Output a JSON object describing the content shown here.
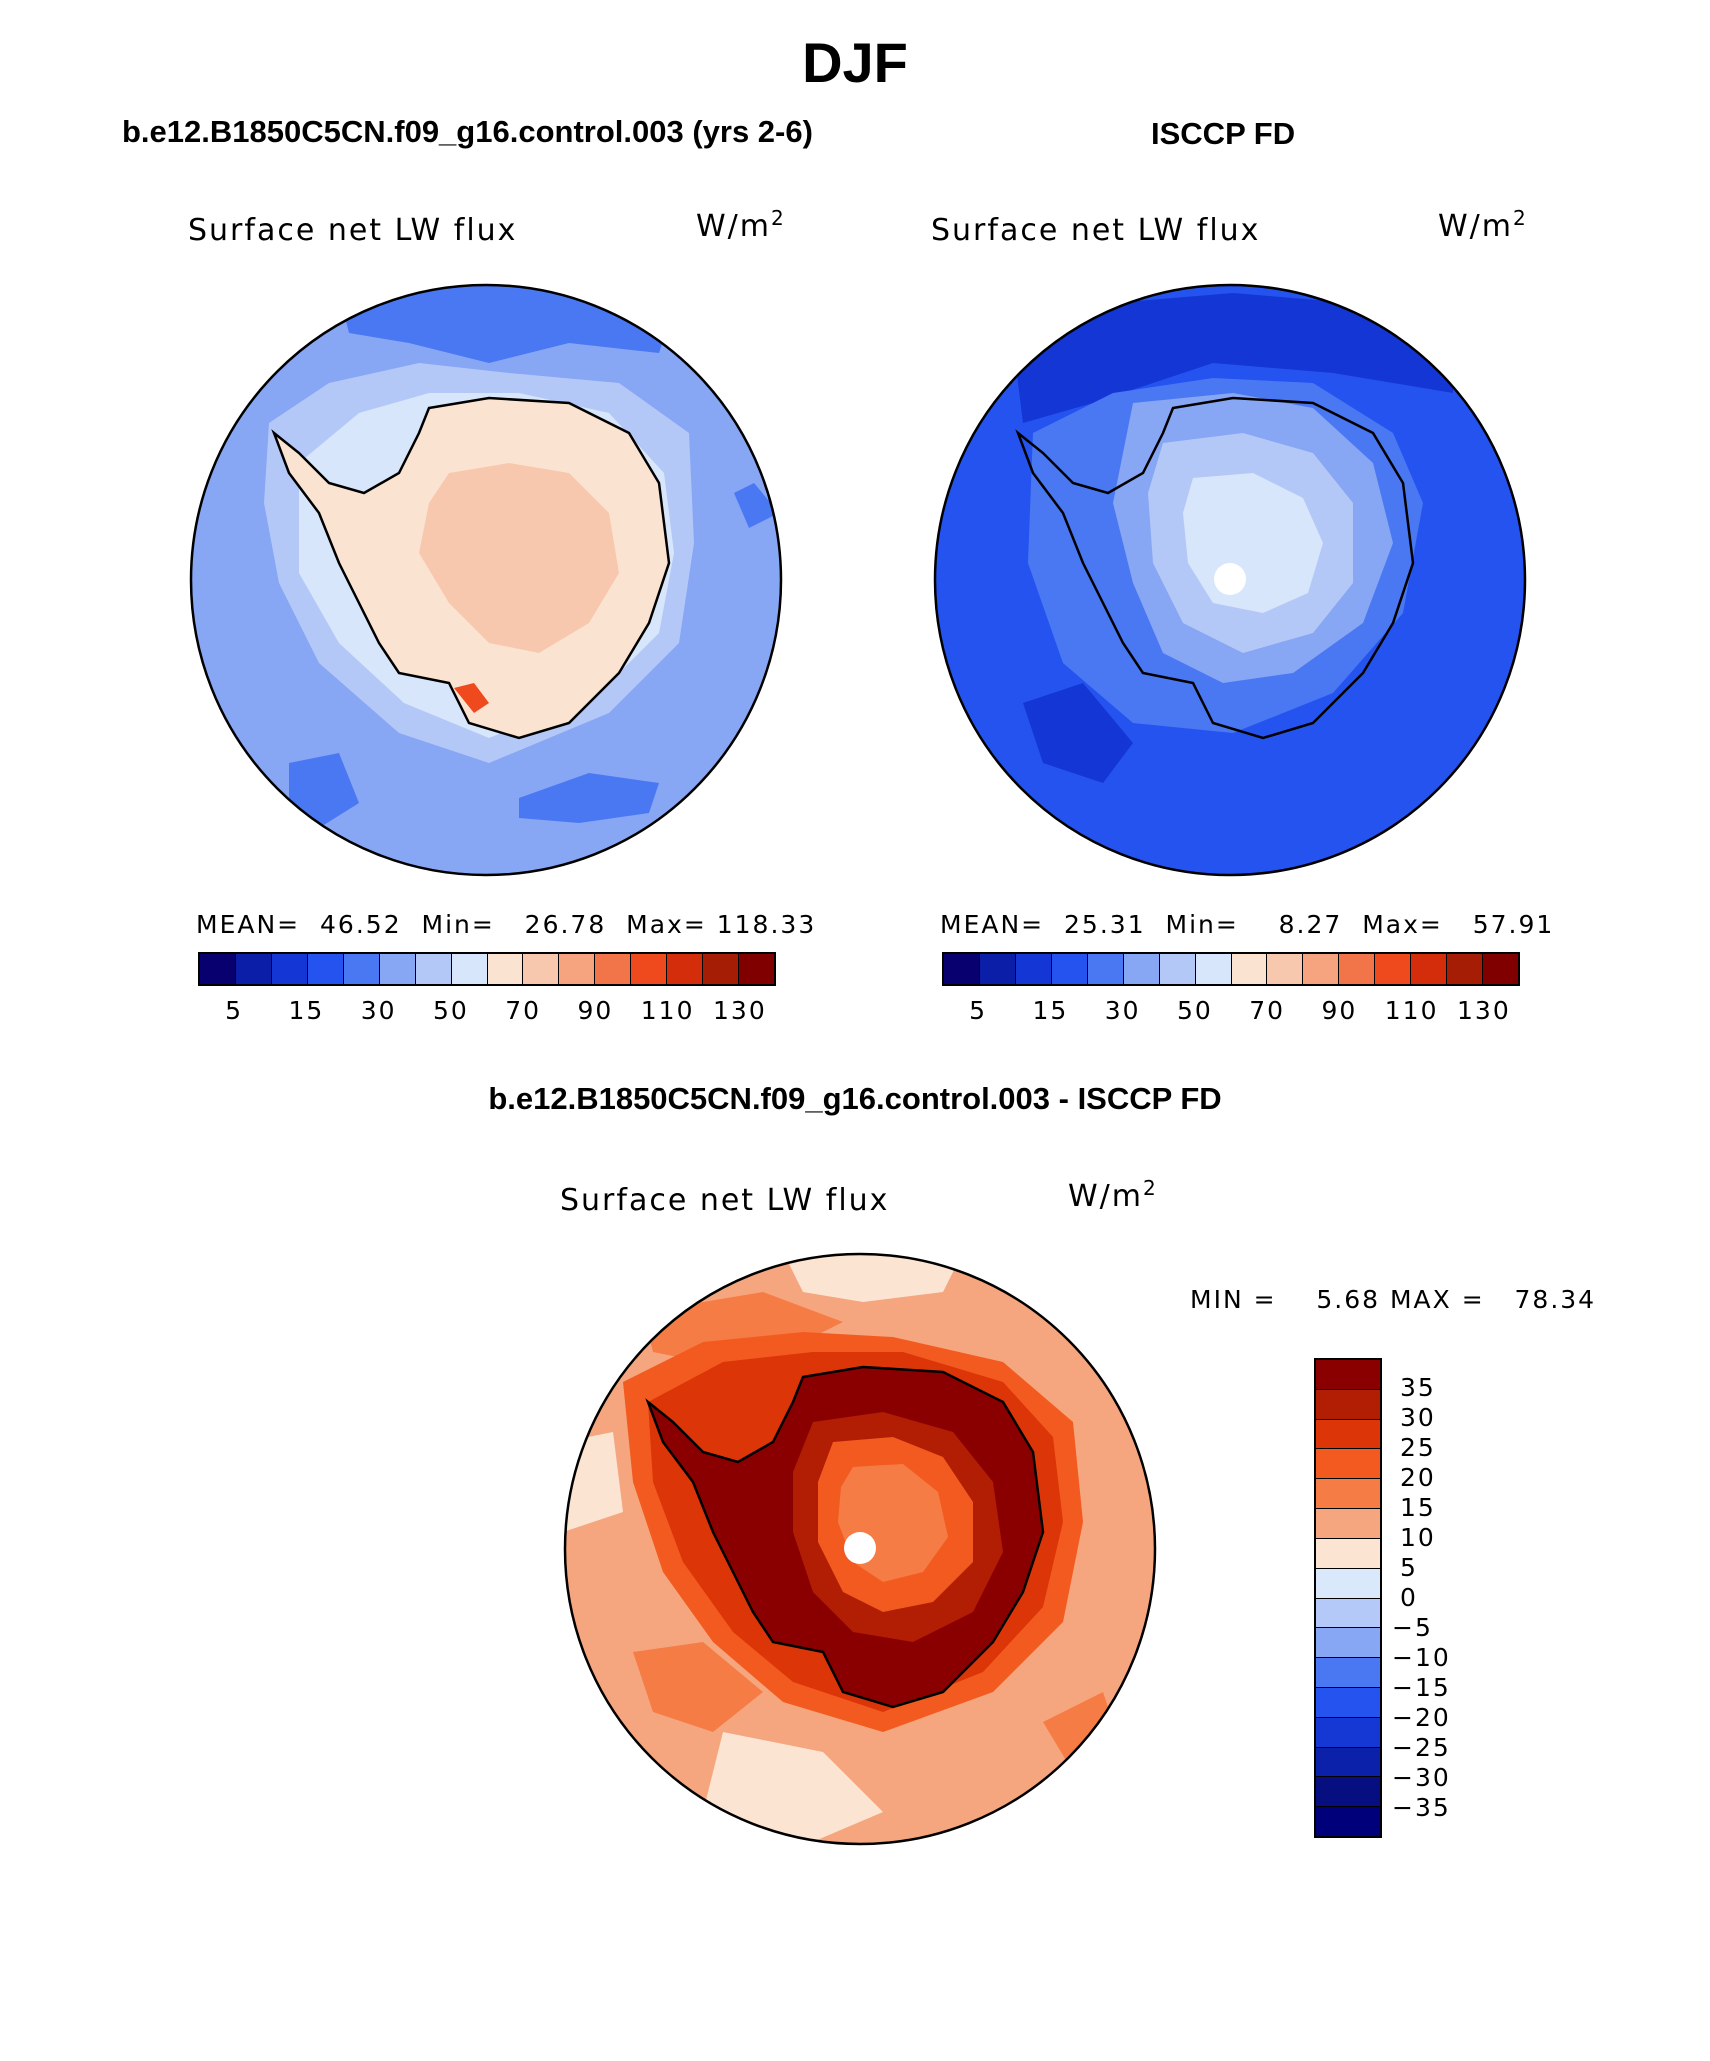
{
  "figure": {
    "title": "DJF",
    "variable": "Surface net LW flux",
    "units_base": "W/m",
    "units_exp": "2"
  },
  "panels": {
    "model": {
      "title": "b.e12.B1850C5CN.f09_g16.control.003 (yrs 2-6)",
      "stats": {
        "mean_label": "MEAN=",
        "mean": "46.52",
        "min_label": "Min=",
        "min": "26.78",
        "max_label": "Max=",
        "max": "118.33"
      }
    },
    "obs": {
      "title": "ISCCP FD",
      "stats": {
        "mean_label": "MEAN=",
        "mean": "25.31",
        "min_label": "Min=",
        "min": "8.27",
        "max_label": "Max=",
        "max": "57.91"
      }
    },
    "diff": {
      "title": "b.e12.B1850C5CN.f09_g16.control.003 - ISCCP FD",
      "stats": {
        "min_label": "MIN =",
        "min": "5.68",
        "max_label": "MAX =",
        "max": "78.34"
      }
    }
  },
  "colorbars": {
    "abs": {
      "colors": [
        "#08006e",
        "#0b1ea8",
        "#1436d4",
        "#2553f0",
        "#4a78f2",
        "#87a6f4",
        "#b4c8f8",
        "#d7e6fa",
        "#fbe3d2",
        "#f8c8ae",
        "#f6a47f",
        "#f2754a",
        "#ee4a1e",
        "#d32d0c",
        "#a61d06",
        "#800000"
      ],
      "tick_labels": [
        "5",
        "15",
        "30",
        "50",
        "70",
        "90",
        "110",
        "130"
      ]
    },
    "diff": {
      "colors": [
        "#8a0000",
        "#b21e04",
        "#dc3508",
        "#f35a20",
        "#f57d45",
        "#f6a67e",
        "#fbe4d2",
        "#d9e9fb",
        "#b4c9f7",
        "#87a6f3",
        "#4a78f2",
        "#2553f0",
        "#1538d5",
        "#0b21aa",
        "#070e80",
        "#00007a"
      ],
      "tick_labels": [
        "35",
        "30",
        "25",
        "20",
        "15",
        "10",
        "5",
        "0",
        "−5",
        "−10",
        "−15",
        "−20",
        "−25",
        "−30",
        "−35"
      ]
    }
  },
  "map_colors": {
    "model_ocean": "#87a6f4",
    "model_ocean_blob": "#4a78f2",
    "model_ring": "#b4c8f8",
    "model_ring2": "#d7e6fa",
    "model_land": "#fbe3d2",
    "model_land_inner": "#f8c8ae",
    "model_land_hot": "#ee4a1e",
    "obs_ocean": "#2553f0",
    "obs_ocean_dark": "#1436d4",
    "obs_light1": "#4a78f2",
    "obs_light2": "#87a6f4",
    "obs_light3": "#b4c8f8",
    "obs_light4": "#d7e6fa",
    "diff_ocean": "#f6a67e",
    "diff_ocean_light": "#fbe4d2",
    "diff_ocean_warm": "#f57d45",
    "diff_coast1": "#f35a20",
    "diff_coast2": "#dc3508",
    "diff_land": "#8a0000",
    "diff_land2": "#b21e04",
    "diff_inner1": "#f35a20",
    "diff_inner2": "#f57d45",
    "pole": "#ffffff",
    "coast": "#000000"
  }
}
